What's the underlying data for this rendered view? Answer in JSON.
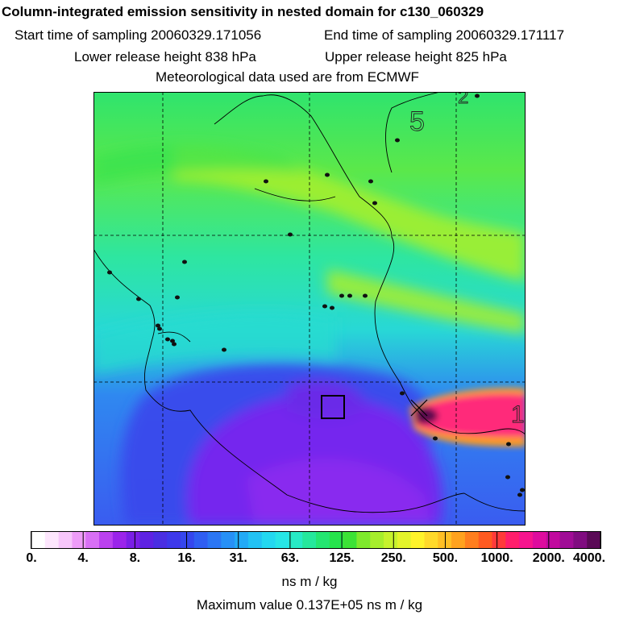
{
  "header": {
    "title": "Column-integrated emission sensitivity in nested domain for c130_060329",
    "start_label": "Start time of sampling 20060329.171056",
    "end_label": "End time of sampling 20060329.171117",
    "lower_label": "Lower release height  838 hPa",
    "upper_label": "Upper release height  825 hPa",
    "met_label": "Meteorological data used are from ECMWF"
  },
  "map": {
    "contour_labels": [
      "5",
      "2",
      "1"
    ],
    "colors": {
      "north_green": "#33e35a",
      "band_yellow_green": "#a8f02a",
      "mid_cyan": "#2bdcc8",
      "blue": "#2f6ef0",
      "purple": "#7a2ff0",
      "plume_pink": "#ff1e8a",
      "plume_dark": "#5a0a50",
      "plume_orange": "#ff9a1e"
    }
  },
  "colorbar": {
    "tick_labels": [
      "0.",
      "4.",
      "8.",
      "16.",
      "31.",
      "63.",
      "125.",
      "250.",
      "500.",
      "1000.",
      "2000.",
      "4000."
    ],
    "colors": [
      "#ffffff",
      "#fde6fd",
      "#f7c6fb",
      "#ee9cf8",
      "#d86ff5",
      "#bb41ef",
      "#9b24ea",
      "#7a1fe6",
      "#5e22e3",
      "#4a2ee2",
      "#3e38ea",
      "#3546ee",
      "#2f5ef2",
      "#2b76f4",
      "#2790f6",
      "#22aaf6",
      "#22c2f4",
      "#23d8f0",
      "#27e6e6",
      "#27eac6",
      "#25e89c",
      "#24e671",
      "#26e44c",
      "#3ce236",
      "#7ee92c",
      "#a6ee2c",
      "#c6f22c",
      "#e4f42a",
      "#fff32a",
      "#ffd92a",
      "#ffbf24",
      "#ffa21e",
      "#ff7e1e",
      "#ff5a20",
      "#ff3a3a",
      "#ff1e6c",
      "#f6148e",
      "#de0c9e",
      "#c10a9e",
      "#a00c96",
      "#800c80",
      "#5a0a56"
    ],
    "unit": "ns m / kg",
    "max_value": "Maximum value  0.137E+05 ns m / kg"
  }
}
